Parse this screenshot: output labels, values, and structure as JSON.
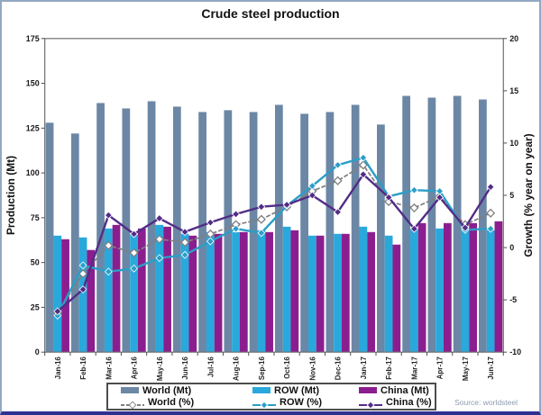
{
  "chart_data": {
    "type": "bar+line combo",
    "title": "Crude steel production",
    "source": "Source: worldsteel",
    "grid": false,
    "legend_position": "bottom-center",
    "categories": [
      "Jan-16",
      "Feb-16",
      "Mar-16",
      "Apr-16",
      "May-16",
      "Jun-16",
      "Jul-16",
      "Aug-16",
      "Sep-16",
      "Oct-16",
      "Nov-16",
      "Dec-16",
      "Jan-17",
      "Feb-17",
      "Mar-17",
      "Apr-17",
      "May-17",
      "Jun-17"
    ],
    "left_axis": {
      "label": "Production (Mt)",
      "range": [
        0,
        175
      ],
      "ticks": [
        0,
        25,
        50,
        75,
        100,
        125,
        150,
        175
      ]
    },
    "right_axis": {
      "label": "Growth (% year on year)",
      "range": [
        -10,
        20
      ],
      "ticks": [
        -10,
        -5,
        0,
        5,
        10,
        15,
        20
      ]
    },
    "bar_series": [
      {
        "name": "World (Mt)",
        "color": "#6b87a5",
        "values": [
          128,
          122,
          139,
          136,
          140,
          137,
          134,
          135,
          134,
          138,
          133,
          134,
          138,
          127,
          143,
          142,
          143,
          141
        ]
      },
      {
        "name": "ROW (Mt)",
        "color": "#29a8dc",
        "values": [
          65,
          64,
          69,
          66,
          71,
          66,
          67,
          67,
          68,
          70,
          65,
          66,
          70,
          65,
          69,
          69,
          69,
          68
        ]
      },
      {
        "name": "China (Mt)",
        "color": "#8b1e8f",
        "values": [
          63,
          57,
          71,
          69,
          70,
          65,
          66,
          67,
          67,
          68,
          65,
          66,
          67,
          60,
          72,
          72,
          72,
          73
        ]
      }
    ],
    "line_series": [
      {
        "name": "World (%)",
        "color": "#7f7f7f",
        "marker": "open-diamond",
        "style": "dashed",
        "values": [
          -6.2,
          -2.5,
          0.2,
          -0.5,
          0.8,
          0.5,
          1.3,
          2.2,
          2.7,
          3.9,
          5.4,
          6.4,
          7.9,
          4.4,
          3.8,
          4.9,
          2.2,
          3.3
        ]
      },
      {
        "name": "ROW (%)",
        "color": "#2b9ec7",
        "marker": "diamond",
        "style": "solid",
        "values": [
          -6.5,
          -1.7,
          -2.3,
          -2.0,
          -1.0,
          -0.7,
          0.6,
          1.8,
          1.4,
          4.0,
          5.9,
          7.9,
          8.6,
          4.9,
          5.5,
          5.4,
          1.7,
          1.8
        ]
      },
      {
        "name": "China (%)",
        "color": "#522c86",
        "marker": "diamond",
        "style": "solid",
        "values": [
          -6.1,
          -4.0,
          3.1,
          1.3,
          2.8,
          1.5,
          2.4,
          3.2,
          3.9,
          4.1,
          5.0,
          3.4,
          7.0,
          4.8,
          1.8,
          4.8,
          1.9,
          5.8
        ]
      }
    ],
    "colors": {
      "plot_border": "#6f6f6f",
      "tick_text": "#1a1a1a",
      "axis_title_text": "#111111",
      "frame_border": "#93a9c2",
      "bottom_band": "#2e3192",
      "legend_border": "#4d4d4d",
      "source_text": "#8c9bae"
    }
  }
}
